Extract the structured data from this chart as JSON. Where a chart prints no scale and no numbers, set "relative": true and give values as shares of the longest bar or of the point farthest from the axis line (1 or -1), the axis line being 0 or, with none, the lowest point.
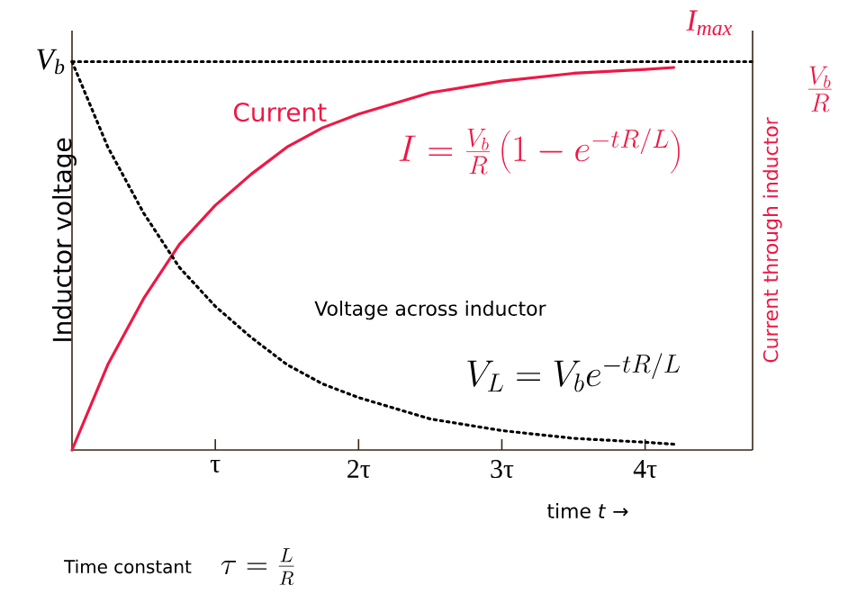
{
  "chart_data": {
    "type": "line",
    "relative": true,
    "xlabel": "time *t* →",
    "ylabel": "Inductor voltage",
    "y2label": "Current through inductor",
    "xlim": [
      0,
      4.75
    ],
    "xticks": [
      {
        "value": 1,
        "label": "τ"
      },
      {
        "value": 2,
        "label": "2τ"
      },
      {
        "value": 3,
        "label": "3τ"
      },
      {
        "value": 4,
        "label": "4τ"
      }
    ],
    "grid": false,
    "marker": "none",
    "ref_lines": [
      {
        "axis": "y",
        "value": 1,
        "label": "V$_{b}$",
        "color": "#000000",
        "line_style": "dotted"
      }
    ],
    "series": [
      {
        "name": "Current",
        "color": "#ee1845",
        "line_style": "solid",
        "x": [
          0,
          0.25,
          0.5,
          0.75,
          1,
          1.25,
          1.5,
          1.75,
          2,
          2.5,
          3,
          3.5,
          4,
          4.2
        ],
        "values": [
          0,
          0.22,
          0.39,
          0.53,
          0.63,
          0.71,
          0.78,
          0.83,
          0.865,
          0.92,
          0.95,
          0.97,
          0.98,
          0.985
        ]
      },
      {
        "name": "Voltage across inductor",
        "color": "#000000",
        "line_style": "dotted",
        "x": [
          0,
          0.25,
          0.5,
          0.75,
          1,
          1.25,
          1.5,
          1.75,
          2,
          2.5,
          3,
          3.5,
          4,
          4.2
        ],
        "values": [
          1,
          0.78,
          0.61,
          0.47,
          0.37,
          0.29,
          0.22,
          0.17,
          0.135,
          0.08,
          0.05,
          0.03,
          0.02,
          0.015
        ]
      }
    ],
    "annotations": [
      "I=\\frac{V_b}{R}\\left(1-e^{-tR/L}\\right)",
      "V_L=V_b e^{-tR/L}",
      "I$_{max}$",
      "\\frac{V_b}{R}",
      "Time constant",
      "\\tau=\\frac{L}{R}"
    ]
  }
}
